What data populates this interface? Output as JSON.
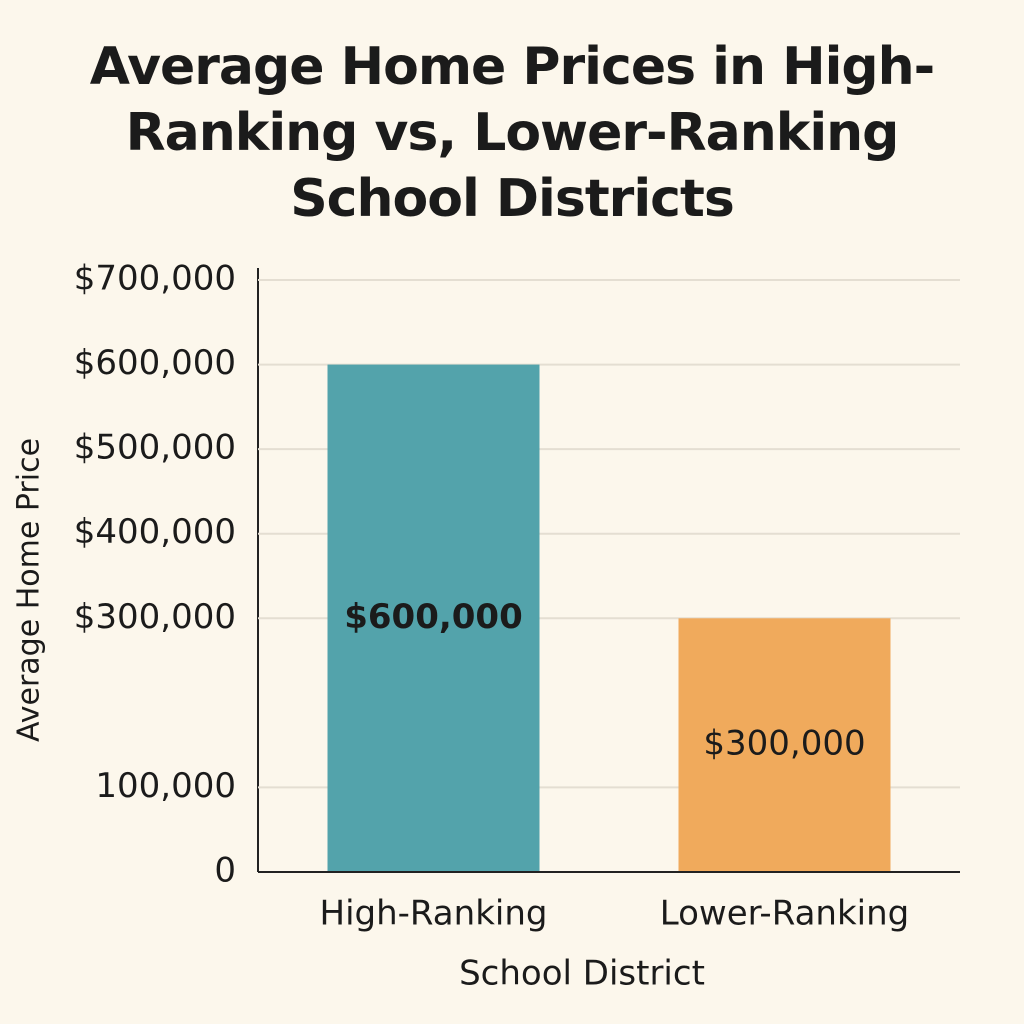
{
  "chart_data": {
    "type": "bar",
    "title": "Average Home Prices in High-Ranking vs, Lower-Ranking School Districts",
    "y_label": "Average Home Price",
    "x_label": "School District",
    "categories": [
      "High-Ranking",
      "Lower-Ranking"
    ],
    "values": [
      600000,
      300000
    ],
    "value_labels": [
      "$600,000",
      "$300,000"
    ],
    "colors": [
      "#53a3ab",
      "#f0aa5c"
    ],
    "ylim": [
      0,
      700000
    ],
    "yticks": [
      {
        "value": 700000,
        "label": "$700,000"
      },
      {
        "value": 600000,
        "label": "$600,000"
      },
      {
        "value": 500000,
        "label": "$500,000"
      },
      {
        "value": 400000,
        "label": "$400,000"
      },
      {
        "value": 300000,
        "label": "$300,000"
      },
      {
        "value": 100000,
        "label": "100,000"
      },
      0
    ],
    "grid": true
  }
}
